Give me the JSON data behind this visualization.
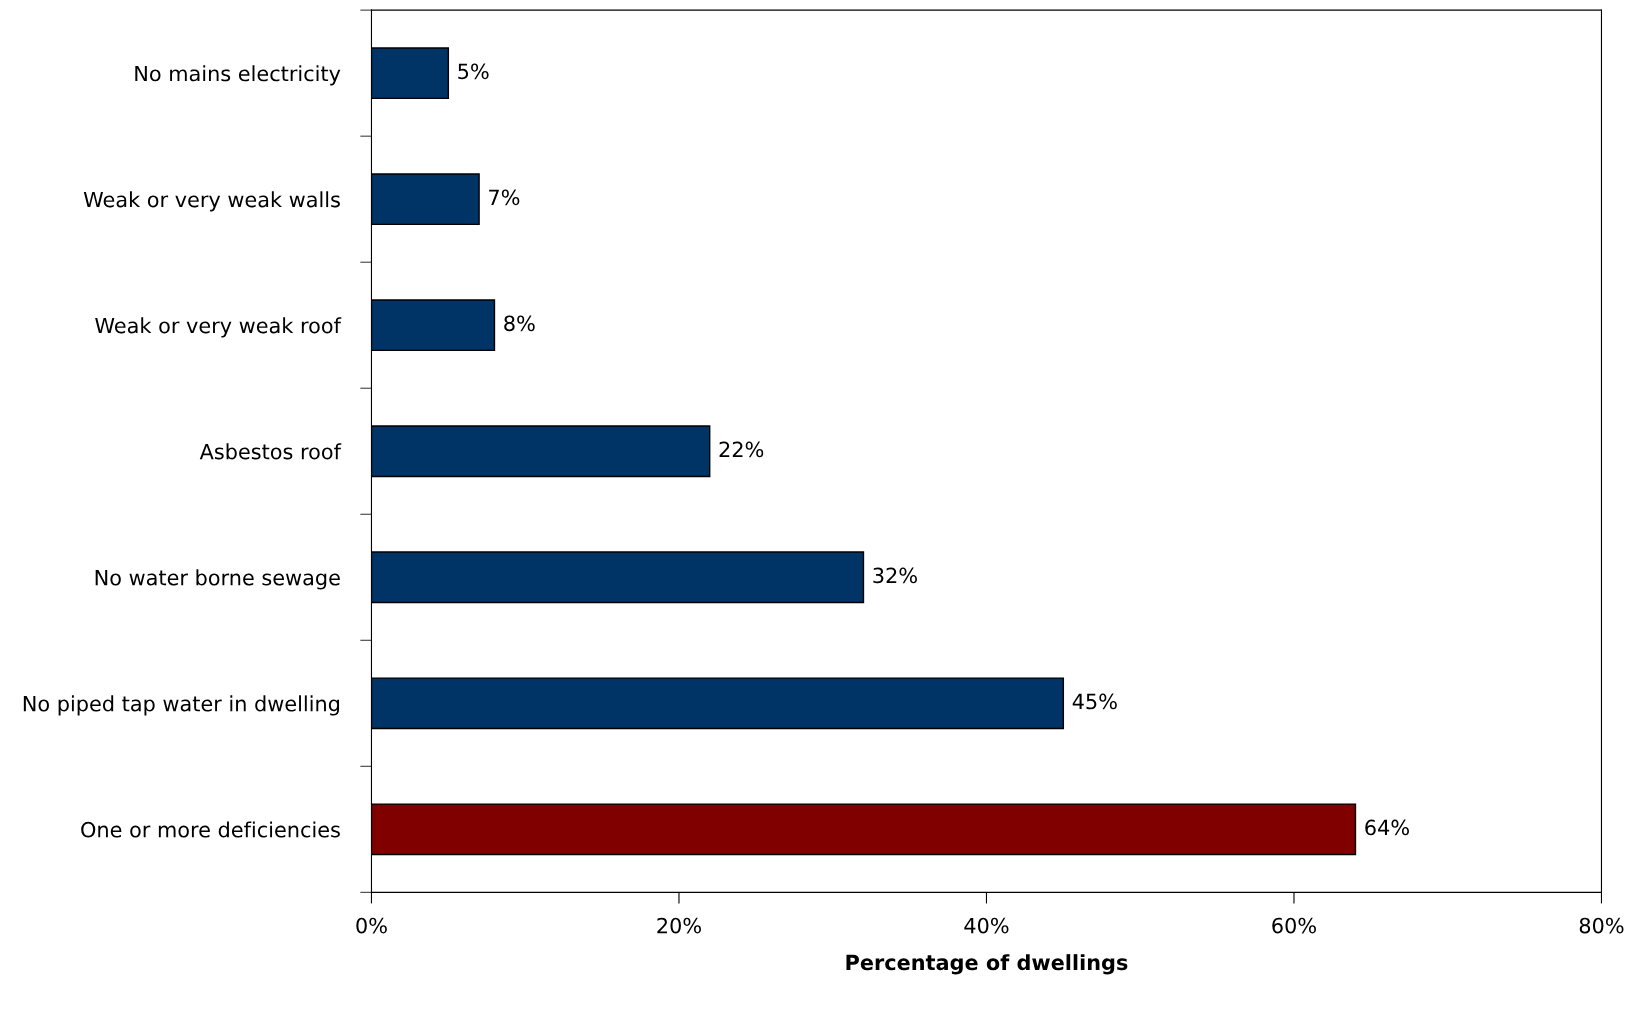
{
  "chart_data": {
    "type": "bar",
    "orientation": "horizontal",
    "xlabel": "Percentage of dwellings",
    "categories": [
      "No mains electricity",
      "Weak or very weak walls",
      "Weak or very weak roof",
      "Asbestos roof",
      "No water borne sewage",
      "No piped tap water in dwelling",
      "One or more deficiencies"
    ],
    "values": [
      5,
      7,
      8,
      22,
      32,
      45,
      64
    ],
    "value_labels": [
      "5%",
      "7%",
      "8%",
      "22%",
      "32%",
      "45%",
      "64%"
    ],
    "colors": [
      "#003366",
      "#003366",
      "#003366",
      "#003366",
      "#003366",
      "#003366",
      "#800000"
    ],
    "xlim": [
      0,
      80
    ],
    "xticks": [
      {
        "value": 0,
        "label": "0%"
      },
      {
        "value": 20,
        "label": "20%"
      },
      {
        "value": 40,
        "label": "40%"
      },
      {
        "value": 60,
        "label": "60%"
      },
      {
        "value": 80,
        "label": "80%"
      }
    ],
    "grid": false,
    "legend": false
  }
}
